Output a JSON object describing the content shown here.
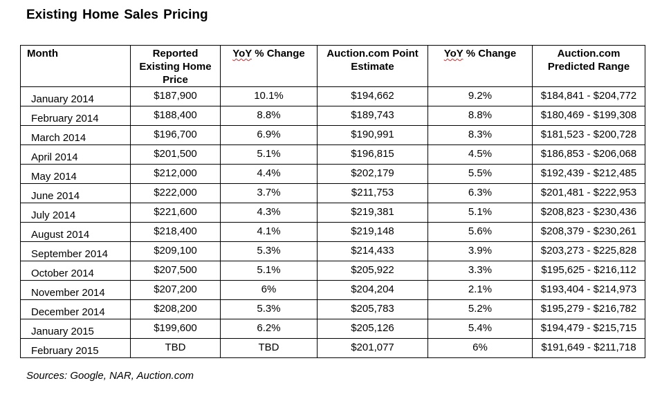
{
  "title": "Existing Home Sales Pricing",
  "columns": [
    {
      "first": "Month",
      "rest": ""
    },
    {
      "first": "Reported Existing Home Price",
      "rest": ""
    },
    {
      "first": "YoY",
      "rest": " % Change"
    },
    {
      "first": "Auction.com Point Estimate",
      "rest": ""
    },
    {
      "first": "YoY",
      "rest": " % Change"
    },
    {
      "first": "Auction.com Predicted Range",
      "rest": ""
    }
  ],
  "rows": [
    [
      "January 2014",
      "$187,900",
      "10.1%",
      "$194,662",
      "9.2%",
      "$184,841 - $204,772"
    ],
    [
      "February 2014",
      "$188,400",
      "8.8%",
      "$189,743",
      "8.8%",
      "$180,469 - $199,308"
    ],
    [
      "March 2014",
      "$196,700",
      "6.9%",
      "$190,991",
      "8.3%",
      "$181,523 - $200,728"
    ],
    [
      "April 2014",
      "$201,500",
      "5.1%",
      "$196,815",
      "4.5%",
      "$186,853 - $206,068"
    ],
    [
      "May 2014",
      "$212,000",
      "4.4%",
      "$202,179",
      "5.5%",
      "$192,439 - $212,485"
    ],
    [
      "June 2014",
      "$222,000",
      "3.7%",
      "$211,753",
      "6.3%",
      "$201,481 - $222,953"
    ],
    [
      "July 2014",
      "$221,600",
      "4.3%",
      "$219,381",
      "5.1%",
      "$208,823 - $230,436"
    ],
    [
      "August 2014",
      "$218,400",
      "4.1%",
      "$219,148",
      "5.6%",
      "$208,379 - $230,261"
    ],
    [
      "September 2014",
      "$209,100",
      "5.3%",
      "$214,433",
      "3.9%",
      "$203,273 - $225,828"
    ],
    [
      "October 2014",
      "$207,500",
      "5.1%",
      "$205,922",
      "3.3%",
      "$195,625 - $216,112"
    ],
    [
      "November 2014",
      "$207,200",
      "6%",
      "$204,204",
      "2.1%",
      "$193,404 - $214,973"
    ],
    [
      "December 2014",
      "$208,200",
      "5.3%",
      "$205,783",
      "5.2%",
      "$195,279 - $216,782"
    ],
    [
      "January 2015",
      "$199,600",
      "6.2%",
      "$205,126",
      "5.4%",
      "$194,479 - $215,715"
    ],
    [
      "February 2015",
      "TBD",
      "TBD",
      "$201,077",
      "6%",
      "$191,649 - $211,718"
    ]
  ],
  "sources": "Sources: Google, NAR, Auction.com"
}
